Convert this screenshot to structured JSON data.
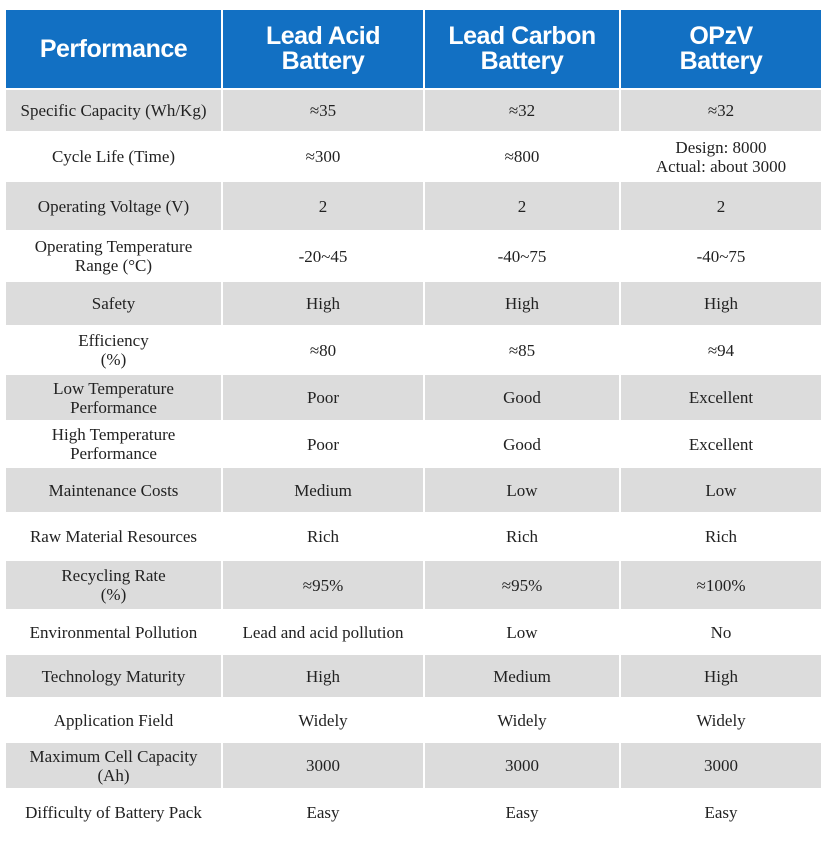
{
  "colors": {
    "header_bg": "#1270c3",
    "header_text": "#ffffff",
    "stripe": "#dcdcdc"
  },
  "header": {
    "col0": "Performance",
    "col1_line1": "Lead Acid",
    "col1_line2": "Battery",
    "col2_line1": "Lead Carbon",
    "col2_line2": "Battery",
    "col3_line1": "OPzV",
    "col3_line2": "Battery"
  },
  "rows": [
    {
      "label": [
        "Specific Capacity  (Wh/Kg)"
      ],
      "lead_acid": [
        "≈35"
      ],
      "lead_carbon": [
        "≈32"
      ],
      "opzv": [
        "≈32"
      ]
    },
    {
      "label": [
        "Cycle Life (Time)"
      ],
      "lead_acid": [
        "≈300"
      ],
      "lead_carbon": [
        "≈800"
      ],
      "opzv": [
        "Design: 8000",
        "Actual: about 3000"
      ]
    },
    {
      "label": [
        "Operating Voltage (V)"
      ],
      "lead_acid": [
        "2"
      ],
      "lead_carbon": [
        "2"
      ],
      "opzv": [
        "2"
      ]
    },
    {
      "label": [
        "Operating Temperature",
        "Range (°C)"
      ],
      "lead_acid": [
        "-20~45"
      ],
      "lead_carbon": [
        "-40~75"
      ],
      "opzv": [
        "-40~75"
      ]
    },
    {
      "label": [
        "Safety"
      ],
      "lead_acid": [
        "High"
      ],
      "lead_carbon": [
        "High"
      ],
      "opzv": [
        "High"
      ]
    },
    {
      "label": [
        "Efficiency",
        "(%)"
      ],
      "lead_acid": [
        "≈80"
      ],
      "lead_carbon": [
        "≈85"
      ],
      "opzv": [
        "≈94"
      ]
    },
    {
      "label": [
        "Low Temperature",
        "Performance"
      ],
      "lead_acid": [
        "Poor"
      ],
      "lead_carbon": [
        "Good"
      ],
      "opzv": [
        "Excellent"
      ]
    },
    {
      "label": [
        "High Temperature",
        "Performance"
      ],
      "lead_acid": [
        "Poor"
      ],
      "lead_carbon": [
        "Good"
      ],
      "opzv": [
        "Excellent"
      ]
    },
    {
      "label": [
        "Maintenance Costs"
      ],
      "lead_acid": [
        "Medium"
      ],
      "lead_carbon": [
        "Low"
      ],
      "opzv": [
        "Low"
      ]
    },
    {
      "label": [
        "Raw Material Resources"
      ],
      "lead_acid": [
        "Rich"
      ],
      "lead_carbon": [
        "Rich"
      ],
      "opzv": [
        "Rich"
      ]
    },
    {
      "label": [
        "Recycling Rate",
        "(%)"
      ],
      "lead_acid": [
        "≈95%"
      ],
      "lead_carbon": [
        "≈95%"
      ],
      "opzv": [
        "≈100%"
      ]
    },
    {
      "label": [
        "Environmental Pollution"
      ],
      "lead_acid": [
        "Lead and acid pollution"
      ],
      "lead_carbon": [
        "Low"
      ],
      "opzv": [
        "No"
      ]
    },
    {
      "label": [
        "Technology Maturity"
      ],
      "lead_acid": [
        "High"
      ],
      "lead_carbon": [
        "Medium"
      ],
      "opzv": [
        "High"
      ]
    },
    {
      "label": [
        "Application Field"
      ],
      "lead_acid": [
        "Widely"
      ],
      "lead_carbon": [
        "Widely"
      ],
      "opzv": [
        "Widely"
      ]
    },
    {
      "label": [
        "Maximum Cell Capacity",
        "(Ah)"
      ],
      "lead_acid": [
        "3000"
      ],
      "lead_carbon": [
        "3000"
      ],
      "opzv": [
        "3000"
      ]
    },
    {
      "label": [
        "Difficulty of  Battery Pack"
      ],
      "lead_acid": [
        "Easy"
      ],
      "lead_carbon": [
        "Easy"
      ],
      "opzv": [
        "Easy"
      ]
    }
  ]
}
